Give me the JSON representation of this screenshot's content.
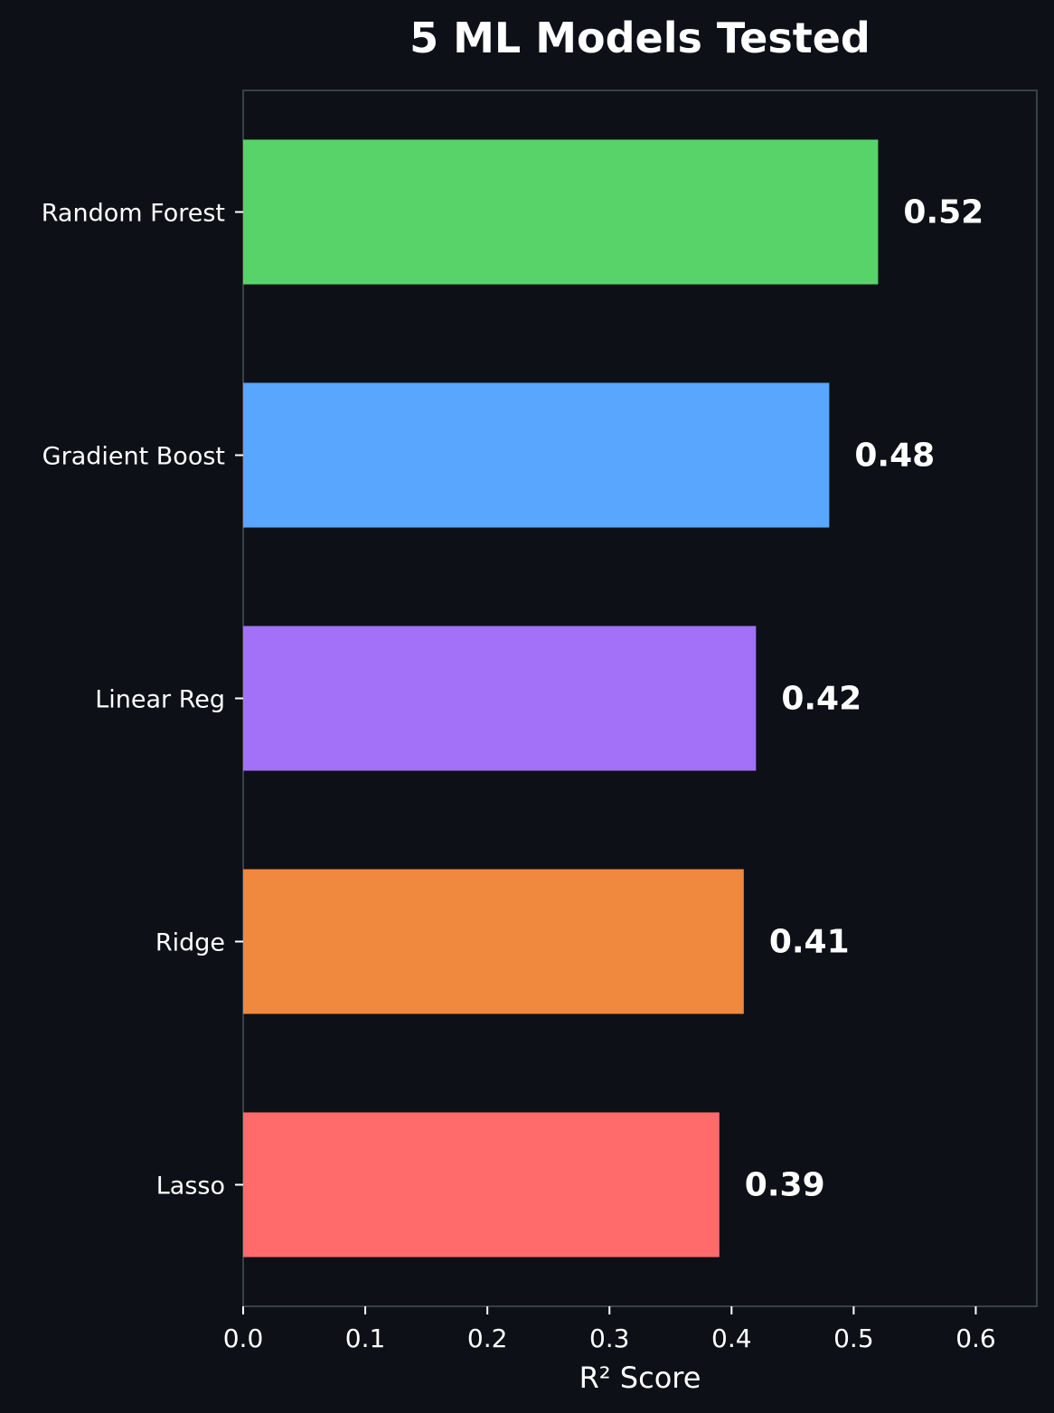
{
  "chart_data": {
    "type": "bar",
    "orientation": "horizontal",
    "title": "5 ML Models Tested",
    "xlabel": "R² Score",
    "ylabel": "",
    "categories": [
      "Random Forest",
      "Gradient Boost",
      "Linear Reg",
      "Ridge",
      "Lasso"
    ],
    "values": [
      0.52,
      0.48,
      0.42,
      0.41,
      0.39
    ],
    "value_labels": [
      "0.52",
      "0.48",
      "0.42",
      "0.41",
      "0.39"
    ],
    "colors": [
      "#58d36a",
      "#58a6ff",
      "#a371f7",
      "#f0883e",
      "#ff6b6b"
    ],
    "xlim": [
      0,
      0.65
    ],
    "xticks": [
      0.0,
      0.1,
      0.2,
      0.3,
      0.4,
      0.5,
      0.6
    ],
    "xtick_labels": [
      "0.0",
      "0.1",
      "0.2",
      "0.3",
      "0.4",
      "0.5",
      "0.6"
    ],
    "grid": false,
    "legend": "none",
    "background": "#0d1017",
    "frame_color": "#3a3f48"
  }
}
